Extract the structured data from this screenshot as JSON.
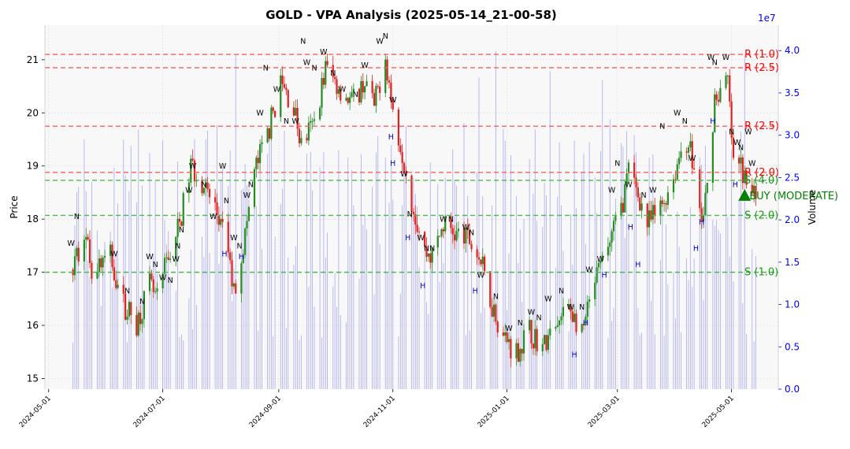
{
  "chart_data": {
    "type": "candlestick",
    "title": "GOLD - VPA Analysis (2025-05-14_21-00-58)",
    "ylabel": "Price",
    "ylabel_right": "Volume",
    "volume_exponent": "1e7",
    "ylim": [
      14.8,
      21.65
    ],
    "y_ticks": [
      15,
      16,
      17,
      18,
      19,
      20,
      21
    ],
    "volume_ylim": [
      0,
      4.3
    ],
    "volume_ticks": [
      "0.0",
      "0.5",
      "1.0",
      "1.5",
      "2.0",
      "2.5",
      "3.0",
      "3.5",
      "4.0"
    ],
    "x_ticks": [
      "2024-05-01",
      "2024-07-01",
      "2024-09-01",
      "2024-11-01",
      "2025-01-01",
      "2025-03-01",
      "2025-05-01"
    ],
    "x_range": [
      "2024-04-29",
      "2025-05-26"
    ],
    "grid": true,
    "colors": {
      "up": "#228b22",
      "down": "#e02020",
      "volume": "#6a6af0",
      "resistance": "#ff5c5c",
      "support": "#4db84d",
      "signal": "#008000",
      "marker_w_n": "#000000",
      "marker_h": "#0000cc",
      "right_axis": "#0000ff"
    },
    "levels": [
      {
        "label": "R (1.0)",
        "kind": "resistance",
        "price": 21.1
      },
      {
        "label": "R (2.5)",
        "kind": "resistance",
        "price": 20.85
      },
      {
        "label": "R (2.5)",
        "kind": "resistance",
        "price": 19.75
      },
      {
        "label": "R (2.0)",
        "kind": "resistance",
        "price": 18.88
      },
      {
        "label": "S (4.0)",
        "kind": "support",
        "price": 18.73
      },
      {
        "label": "S (2.0)",
        "kind": "support",
        "price": 18.07
      },
      {
        "label": "S (1.0)",
        "kind": "support",
        "price": 17.0
      }
    ],
    "signal": {
      "label": "BUY (MODERATE)",
      "date": "2025-05-08",
      "price": 18.45
    },
    "price_anchors": [
      [
        "2024-05-14",
        17.05
      ],
      [
        "2024-05-20",
        17.8
      ],
      [
        "2024-05-24",
        17.1
      ],
      [
        "2024-06-03",
        17.3
      ],
      [
        "2024-06-10",
        16.4
      ],
      [
        "2024-06-17",
        16.05
      ],
      [
        "2024-06-24",
        16.75
      ],
      [
        "2024-06-28",
        16.45
      ],
      [
        "2024-07-03",
        17.2
      ],
      [
        "2024-07-10",
        17.9
      ],
      [
        "2024-07-16",
        19.0
      ],
      [
        "2024-07-22",
        18.7
      ],
      [
        "2024-07-29",
        18.2
      ],
      [
        "2024-08-05",
        17.4
      ],
      [
        "2024-08-08",
        16.6
      ],
      [
        "2024-08-14",
        17.7
      ],
      [
        "2024-08-19",
        18.9
      ],
      [
        "2024-08-26",
        19.6
      ],
      [
        "2024-09-02",
        20.55
      ],
      [
        "2024-09-09",
        20.1
      ],
      [
        "2024-09-13",
        19.4
      ],
      [
        "2024-09-20",
        19.8
      ],
      [
        "2024-09-26",
        20.85
      ],
      [
        "2024-10-03",
        20.5
      ],
      [
        "2024-10-10",
        20.2
      ],
      [
        "2024-10-17",
        20.6
      ],
      [
        "2024-10-22",
        20.1
      ],
      [
        "2024-10-28",
        21.1
      ],
      [
        "2024-11-01",
        20.0
      ],
      [
        "2024-11-06",
        19.3
      ],
      [
        "2024-11-12",
        18.2
      ],
      [
        "2024-11-18",
        17.4
      ],
      [
        "2024-11-22",
        17.3
      ],
      [
        "2024-11-28",
        17.9
      ],
      [
        "2024-12-05",
        17.7
      ],
      [
        "2024-12-12",
        17.6
      ],
      [
        "2024-12-18",
        17.2
      ],
      [
        "2024-12-23",
        16.5
      ],
      [
        "2024-12-30",
        15.8
      ],
      [
        "2025-01-06",
        15.5
      ],
      [
        "2025-01-13",
        15.9
      ],
      [
        "2025-01-20",
        15.6
      ],
      [
        "2025-01-27",
        15.9
      ],
      [
        "2025-02-03",
        16.4
      ],
      [
        "2025-02-10",
        15.8
      ],
      [
        "2025-02-17",
        16.8
      ],
      [
        "2025-02-24",
        17.5
      ],
      [
        "2025-03-03",
        18.2
      ],
      [
        "2025-03-07",
        18.9
      ],
      [
        "2025-03-12",
        18.5
      ],
      [
        "2025-03-17",
        17.9
      ],
      [
        "2025-03-24",
        18.2
      ],
      [
        "2025-03-31",
        18.8
      ],
      [
        "2025-04-04",
        19.3
      ],
      [
        "2025-04-08",
        19.5
      ],
      [
        "2025-04-11",
        18.9
      ],
      [
        "2025-04-15",
        17.9
      ],
      [
        "2025-04-18",
        18.6
      ],
      [
        "2025-04-22",
        20.3
      ],
      [
        "2025-04-25",
        20.4
      ],
      [
        "2025-04-29",
        20.6
      ],
      [
        "2025-05-02",
        19.0
      ],
      [
        "2025-05-06",
        19.0
      ],
      [
        "2025-05-09",
        18.6
      ],
      [
        "2025-05-14",
        18.45
      ]
    ],
    "markers": [
      {
        "t": "W",
        "d": "2024-05-13",
        "p": 17.5
      },
      {
        "t": "N",
        "d": "2024-05-16",
        "p": 18.0
      },
      {
        "t": "W",
        "d": "2024-06-05",
        "p": 17.3
      },
      {
        "t": "N",
        "d": "2024-06-12",
        "p": 16.6
      },
      {
        "t": "N",
        "d": "2024-06-20",
        "p": 16.4
      },
      {
        "t": "W",
        "d": "2024-06-24",
        "p": 17.25
      },
      {
        "t": "N",
        "d": "2024-06-27",
        "p": 17.1
      },
      {
        "t": "W",
        "d": "2024-07-01",
        "p": 16.85
      },
      {
        "t": "N",
        "d": "2024-07-05",
        "p": 16.8
      },
      {
        "t": "W",
        "d": "2024-07-08",
        "p": 17.2
      },
      {
        "t": "N",
        "d": "2024-07-09",
        "p": 17.45
      },
      {
        "t": "N",
        "d": "2024-07-11",
        "p": 17.75
      },
      {
        "t": "W",
        "d": "2024-07-15",
        "p": 18.5
      },
      {
        "t": "W",
        "d": "2024-07-17",
        "p": 18.95
      },
      {
        "t": "N",
        "d": "2024-07-23",
        "p": 18.6
      },
      {
        "t": "W",
        "d": "2024-07-28",
        "p": 18.0
      },
      {
        "t": "W",
        "d": "2024-08-02",
        "p": 18.95
      },
      {
        "t": "N",
        "d": "2024-08-04",
        "p": 18.3
      },
      {
        "t": "H",
        "d": "2024-08-03",
        "p": 17.3
      },
      {
        "t": "W",
        "d": "2024-08-08",
        "p": 17.6
      },
      {
        "t": "N",
        "d": "2024-08-11",
        "p": 17.45
      },
      {
        "t": "H",
        "d": "2024-08-12",
        "p": 17.25
      },
      {
        "t": "W",
        "d": "2024-08-15",
        "p": 18.4
      },
      {
        "t": "N",
        "d": "2024-08-17",
        "p": 18.6
      },
      {
        "t": "W",
        "d": "2024-08-22",
        "p": 19.95
      },
      {
        "t": "N",
        "d": "2024-08-25",
        "p": 20.8
      },
      {
        "t": "W",
        "d": "2024-08-31",
        "p": 20.4
      },
      {
        "t": "N",
        "d": "2024-09-05",
        "p": 19.8
      },
      {
        "t": "W",
        "d": "2024-09-10",
        "p": 19.8
      },
      {
        "t": "N",
        "d": "2024-09-14",
        "p": 21.3
      },
      {
        "t": "W",
        "d": "2024-09-16",
        "p": 20.9
      },
      {
        "t": "N",
        "d": "2024-09-20",
        "p": 20.8
      },
      {
        "t": "W",
        "d": "2024-09-25",
        "p": 21.1
      },
      {
        "t": "N",
        "d": "2024-09-30",
        "p": 20.7
      },
      {
        "t": "W",
        "d": "2024-10-05",
        "p": 20.4
      },
      {
        "t": "N",
        "d": "2024-10-12",
        "p": 20.3
      },
      {
        "t": "W",
        "d": "2024-10-17",
        "p": 20.85
      },
      {
        "t": "W",
        "d": "2024-10-25",
        "p": 21.3
      },
      {
        "t": "N",
        "d": "2024-10-28",
        "p": 21.4
      },
      {
        "t": "W",
        "d": "2024-11-01",
        "p": 20.2
      },
      {
        "t": "H",
        "d": "2024-10-31",
        "p": 19.5
      },
      {
        "t": "H",
        "d": "2024-11-01",
        "p": 19.0
      },
      {
        "t": "W",
        "d": "2024-11-07",
        "p": 18.8
      },
      {
        "t": "N",
        "d": "2024-11-10",
        "p": 18.05
      },
      {
        "t": "H",
        "d": "2024-11-09",
        "p": 17.6
      },
      {
        "t": "W",
        "d": "2024-11-16",
        "p": 17.6
      },
      {
        "t": "N",
        "d": "2024-11-19",
        "p": 17.4
      },
      {
        "t": "H",
        "d": "2024-11-17",
        "p": 16.7
      },
      {
        "t": "N",
        "d": "2024-11-22",
        "p": 17.4
      },
      {
        "t": "W",
        "d": "2024-11-28",
        "p": 17.95
      },
      {
        "t": "N",
        "d": "2024-12-02",
        "p": 17.95
      },
      {
        "t": "W",
        "d": "2024-12-10",
        "p": 17.8
      },
      {
        "t": "N",
        "d": "2024-12-13",
        "p": 17.7
      },
      {
        "t": "H",
        "d": "2024-12-15",
        "p": 16.6
      },
      {
        "t": "W",
        "d": "2024-12-18",
        "p": 16.9
      },
      {
        "t": "N",
        "d": "2024-12-26",
        "p": 16.5
      },
      {
        "t": "W",
        "d": "2025-01-02",
        "p": 15.9
      },
      {
        "t": "N",
        "d": "2025-01-08",
        "p": 16.0
      },
      {
        "t": "W",
        "d": "2025-01-14",
        "p": 16.2
      },
      {
        "t": "N",
        "d": "2025-01-18",
        "p": 16.1
      },
      {
        "t": "W",
        "d": "2025-01-23",
        "p": 16.45
      },
      {
        "t": "N",
        "d": "2025-01-30",
        "p": 16.6
      },
      {
        "t": "W",
        "d": "2025-02-04",
        "p": 16.3
      },
      {
        "t": "H",
        "d": "2025-02-06",
        "p": 15.4
      },
      {
        "t": "N",
        "d": "2025-02-10",
        "p": 16.3
      },
      {
        "t": "W",
        "d": "2025-02-14",
        "p": 17.0
      },
      {
        "t": "H",
        "d": "2025-02-12",
        "p": 16.0
      },
      {
        "t": "W",
        "d": "2025-02-20",
        "p": 17.2
      },
      {
        "t": "H",
        "d": "2025-02-22",
        "p": 16.9
      },
      {
        "t": "W",
        "d": "2025-02-26",
        "p": 18.5
      },
      {
        "t": "N",
        "d": "2025-03-01",
        "p": 19.0
      },
      {
        "t": "W",
        "d": "2025-03-07",
        "p": 18.6
      },
      {
        "t": "H",
        "d": "2025-03-08",
        "p": 17.8
      },
      {
        "t": "H",
        "d": "2025-03-12",
        "p": 17.1
      },
      {
        "t": "N",
        "d": "2025-03-15",
        "p": 18.4
      },
      {
        "t": "W",
        "d": "2025-03-20",
        "p": 18.5
      },
      {
        "t": "N",
        "d": "2025-03-25",
        "p": 19.7
      },
      {
        "t": "W",
        "d": "2025-04-02",
        "p": 19.95
      },
      {
        "t": "N",
        "d": "2025-04-06",
        "p": 19.8
      },
      {
        "t": "W",
        "d": "2025-04-10",
        "p": 19.1
      },
      {
        "t": "H",
        "d": "2025-04-12",
        "p": 17.4
      },
      {
        "t": "H",
        "d": "2025-04-15",
        "p": 17.9
      },
      {
        "t": "W",
        "d": "2025-04-20",
        "p": 21.0
      },
      {
        "t": "N",
        "d": "2025-04-22",
        "p": 20.9
      },
      {
        "t": "H",
        "d": "2025-04-21",
        "p": 19.8
      },
      {
        "t": "W",
        "d": "2025-04-28",
        "p": 21.0
      },
      {
        "t": "N",
        "d": "2025-05-01",
        "p": 19.6
      },
      {
        "t": "W",
        "d": "2025-05-04",
        "p": 19.4
      },
      {
        "t": "N",
        "d": "2025-05-06",
        "p": 19.3
      },
      {
        "t": "H",
        "d": "2025-05-03",
        "p": 18.6
      },
      {
        "t": "W",
        "d": "2025-05-10",
        "p": 19.6
      },
      {
        "t": "W",
        "d": "2025-05-12",
        "p": 19.0
      }
    ]
  }
}
